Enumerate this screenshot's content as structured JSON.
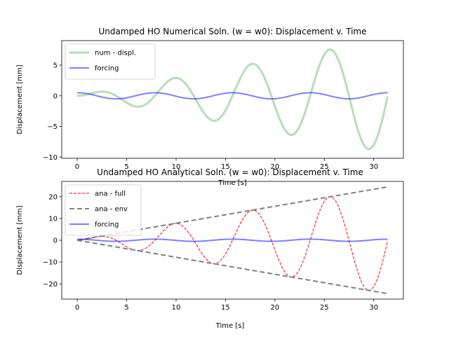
{
  "chart_data": [
    {
      "type": "line",
      "title": "Undamped HO Numerical Soln. (w = w0): Displacement v. Time",
      "xlabel": "Time [s]",
      "ylabel": "Displacement [mm]",
      "xlim": [
        -1.57,
        33.0
      ],
      "ylim": [
        -10.2,
        9.0
      ],
      "xticks": [
        0,
        5,
        10,
        15,
        20,
        25,
        30
      ],
      "yticks": [
        -10,
        -5,
        0,
        5
      ],
      "xtick_labels": [
        "0",
        "5",
        "10",
        "15",
        "20",
        "25",
        "30"
      ],
      "ytick_labels": [
        "−10",
        "−5",
        "0",
        "5"
      ],
      "legend_position": "upper-left",
      "series": [
        {
          "name": "num - displ.",
          "kind": "growing_sine",
          "amp_per_s": 0.295,
          "color": "#2ca02c",
          "alpha": 0.35,
          "width": 3,
          "dash": ""
        },
        {
          "name": "forcing",
          "kind": "cosine",
          "amp": 0.5,
          "color": "#0000ff",
          "alpha": 0.5,
          "width": 2,
          "dash": ""
        }
      ],
      "omega": 0.8,
      "t_range": [
        0,
        31.4
      ]
    },
    {
      "type": "line",
      "title": "Undamped HO Analytical Soln. (w = w0): Displacement v. Time",
      "xlabel": "Time [s]",
      "ylabel": "Displacement [mm]",
      "xlim": [
        -1.57,
        33.0
      ],
      "ylim": [
        -27.0,
        27.0
      ],
      "xticks": [
        0,
        5,
        10,
        15,
        20,
        25,
        30
      ],
      "yticks": [
        -20,
        -10,
        0,
        10,
        20
      ],
      "xtick_labels": [
        "0",
        "5",
        "10",
        "15",
        "20",
        "25",
        "30"
      ],
      "ytick_labels": [
        "−20",
        "−10",
        "0",
        "10",
        "20"
      ],
      "legend_position": "upper-left",
      "series": [
        {
          "name": "ana - full",
          "kind": "growing_sine",
          "amp_per_s": 0.78,
          "color": "#ff0000",
          "alpha": 1,
          "width": 1,
          "dash": "4,2"
        },
        {
          "name": "ana - env",
          "kind": "envelope",
          "amp_per_s": 0.78,
          "color": "#808080",
          "alpha": 1,
          "width": 2,
          "dash": "7,4"
        },
        {
          "name": "forcing",
          "kind": "cosine",
          "amp": 0.5,
          "color": "#0000ff",
          "alpha": 0.5,
          "width": 2,
          "dash": ""
        }
      ],
      "omega": 0.8,
      "t_range": [
        0,
        31.4
      ]
    }
  ]
}
